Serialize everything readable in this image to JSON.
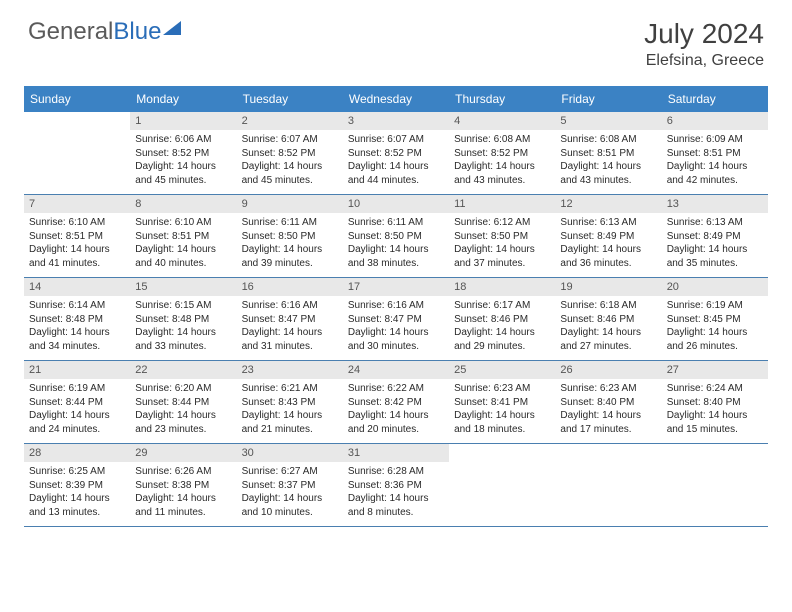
{
  "brand": {
    "part1": "General",
    "part2": "Blue"
  },
  "title": "July 2024",
  "location": "Elefsina, Greece",
  "colors": {
    "header_bar": "#3b82c4",
    "header_text": "#ffffff",
    "daynum_bg": "#e8e8e8",
    "daynum_text": "#555555",
    "body_text": "#2a2a2a",
    "rule": "#4a7fb0",
    "page_bg": "#ffffff",
    "logo_gray": "#5a5a5a",
    "logo_blue": "#2a6db8"
  },
  "days_of_week": [
    "Sunday",
    "Monday",
    "Tuesday",
    "Wednesday",
    "Thursday",
    "Friday",
    "Saturday"
  ],
  "weeks": [
    [
      {
        "n": "",
        "sr": "",
        "ss": "",
        "dl": ""
      },
      {
        "n": "1",
        "sr": "Sunrise: 6:06 AM",
        "ss": "Sunset: 8:52 PM",
        "dl": "Daylight: 14 hours and 45 minutes."
      },
      {
        "n": "2",
        "sr": "Sunrise: 6:07 AM",
        "ss": "Sunset: 8:52 PM",
        "dl": "Daylight: 14 hours and 45 minutes."
      },
      {
        "n": "3",
        "sr": "Sunrise: 6:07 AM",
        "ss": "Sunset: 8:52 PM",
        "dl": "Daylight: 14 hours and 44 minutes."
      },
      {
        "n": "4",
        "sr": "Sunrise: 6:08 AM",
        "ss": "Sunset: 8:52 PM",
        "dl": "Daylight: 14 hours and 43 minutes."
      },
      {
        "n": "5",
        "sr": "Sunrise: 6:08 AM",
        "ss": "Sunset: 8:51 PM",
        "dl": "Daylight: 14 hours and 43 minutes."
      },
      {
        "n": "6",
        "sr": "Sunrise: 6:09 AM",
        "ss": "Sunset: 8:51 PM",
        "dl": "Daylight: 14 hours and 42 minutes."
      }
    ],
    [
      {
        "n": "7",
        "sr": "Sunrise: 6:10 AM",
        "ss": "Sunset: 8:51 PM",
        "dl": "Daylight: 14 hours and 41 minutes."
      },
      {
        "n": "8",
        "sr": "Sunrise: 6:10 AM",
        "ss": "Sunset: 8:51 PM",
        "dl": "Daylight: 14 hours and 40 minutes."
      },
      {
        "n": "9",
        "sr": "Sunrise: 6:11 AM",
        "ss": "Sunset: 8:50 PM",
        "dl": "Daylight: 14 hours and 39 minutes."
      },
      {
        "n": "10",
        "sr": "Sunrise: 6:11 AM",
        "ss": "Sunset: 8:50 PM",
        "dl": "Daylight: 14 hours and 38 minutes."
      },
      {
        "n": "11",
        "sr": "Sunrise: 6:12 AM",
        "ss": "Sunset: 8:50 PM",
        "dl": "Daylight: 14 hours and 37 minutes."
      },
      {
        "n": "12",
        "sr": "Sunrise: 6:13 AM",
        "ss": "Sunset: 8:49 PM",
        "dl": "Daylight: 14 hours and 36 minutes."
      },
      {
        "n": "13",
        "sr": "Sunrise: 6:13 AM",
        "ss": "Sunset: 8:49 PM",
        "dl": "Daylight: 14 hours and 35 minutes."
      }
    ],
    [
      {
        "n": "14",
        "sr": "Sunrise: 6:14 AM",
        "ss": "Sunset: 8:48 PM",
        "dl": "Daylight: 14 hours and 34 minutes."
      },
      {
        "n": "15",
        "sr": "Sunrise: 6:15 AM",
        "ss": "Sunset: 8:48 PM",
        "dl": "Daylight: 14 hours and 33 minutes."
      },
      {
        "n": "16",
        "sr": "Sunrise: 6:16 AM",
        "ss": "Sunset: 8:47 PM",
        "dl": "Daylight: 14 hours and 31 minutes."
      },
      {
        "n": "17",
        "sr": "Sunrise: 6:16 AM",
        "ss": "Sunset: 8:47 PM",
        "dl": "Daylight: 14 hours and 30 minutes."
      },
      {
        "n": "18",
        "sr": "Sunrise: 6:17 AM",
        "ss": "Sunset: 8:46 PM",
        "dl": "Daylight: 14 hours and 29 minutes."
      },
      {
        "n": "19",
        "sr": "Sunrise: 6:18 AM",
        "ss": "Sunset: 8:46 PM",
        "dl": "Daylight: 14 hours and 27 minutes."
      },
      {
        "n": "20",
        "sr": "Sunrise: 6:19 AM",
        "ss": "Sunset: 8:45 PM",
        "dl": "Daylight: 14 hours and 26 minutes."
      }
    ],
    [
      {
        "n": "21",
        "sr": "Sunrise: 6:19 AM",
        "ss": "Sunset: 8:44 PM",
        "dl": "Daylight: 14 hours and 24 minutes."
      },
      {
        "n": "22",
        "sr": "Sunrise: 6:20 AM",
        "ss": "Sunset: 8:44 PM",
        "dl": "Daylight: 14 hours and 23 minutes."
      },
      {
        "n": "23",
        "sr": "Sunrise: 6:21 AM",
        "ss": "Sunset: 8:43 PM",
        "dl": "Daylight: 14 hours and 21 minutes."
      },
      {
        "n": "24",
        "sr": "Sunrise: 6:22 AM",
        "ss": "Sunset: 8:42 PM",
        "dl": "Daylight: 14 hours and 20 minutes."
      },
      {
        "n": "25",
        "sr": "Sunrise: 6:23 AM",
        "ss": "Sunset: 8:41 PM",
        "dl": "Daylight: 14 hours and 18 minutes."
      },
      {
        "n": "26",
        "sr": "Sunrise: 6:23 AM",
        "ss": "Sunset: 8:40 PM",
        "dl": "Daylight: 14 hours and 17 minutes."
      },
      {
        "n": "27",
        "sr": "Sunrise: 6:24 AM",
        "ss": "Sunset: 8:40 PM",
        "dl": "Daylight: 14 hours and 15 minutes."
      }
    ],
    [
      {
        "n": "28",
        "sr": "Sunrise: 6:25 AM",
        "ss": "Sunset: 8:39 PM",
        "dl": "Daylight: 14 hours and 13 minutes."
      },
      {
        "n": "29",
        "sr": "Sunrise: 6:26 AM",
        "ss": "Sunset: 8:38 PM",
        "dl": "Daylight: 14 hours and 11 minutes."
      },
      {
        "n": "30",
        "sr": "Sunrise: 6:27 AM",
        "ss": "Sunset: 8:37 PM",
        "dl": "Daylight: 14 hours and 10 minutes."
      },
      {
        "n": "31",
        "sr": "Sunrise: 6:28 AM",
        "ss": "Sunset: 8:36 PM",
        "dl": "Daylight: 14 hours and 8 minutes."
      },
      {
        "n": "",
        "sr": "",
        "ss": "",
        "dl": ""
      },
      {
        "n": "",
        "sr": "",
        "ss": "",
        "dl": ""
      },
      {
        "n": "",
        "sr": "",
        "ss": "",
        "dl": ""
      }
    ]
  ]
}
